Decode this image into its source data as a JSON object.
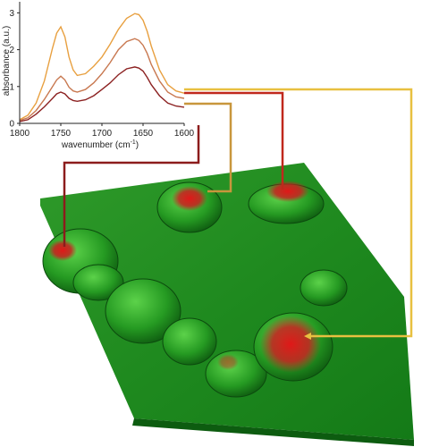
{
  "chart_data": {
    "type": "line",
    "title": "",
    "xlabel": "wavenumber (cm",
    "xlabel_sup": "-1",
    "xlabel_close": ")",
    "ylabel": "absorbance (a.u.)",
    "xlim": [
      1800,
      1600
    ],
    "ylim": [
      0,
      3.3
    ],
    "x_ticks": [
      "1800",
      "1750",
      "1700",
      "1650",
      "1600"
    ],
    "y_ticks": [
      "0",
      "1",
      "2",
      "3"
    ],
    "grid": false,
    "x": [
      1800,
      1790,
      1780,
      1770,
      1760,
      1755,
      1750,
      1745,
      1740,
      1735,
      1730,
      1720,
      1710,
      1700,
      1690,
      1680,
      1670,
      1660,
      1655,
      1650,
      1645,
      1640,
      1630,
      1620,
      1610,
      1600
    ],
    "series": [
      {
        "color": "#e8a040",
        "values": [
          0.1,
          0.22,
          0.55,
          1.15,
          2.05,
          2.45,
          2.62,
          2.35,
          1.8,
          1.45,
          1.3,
          1.35,
          1.55,
          1.8,
          2.15,
          2.55,
          2.85,
          2.98,
          2.95,
          2.8,
          2.5,
          2.1,
          1.45,
          1.05,
          0.88,
          0.82
        ]
      },
      {
        "color": "#c87850",
        "values": [
          0.08,
          0.15,
          0.35,
          0.65,
          1.0,
          1.18,
          1.28,
          1.18,
          0.98,
          0.88,
          0.85,
          0.92,
          1.1,
          1.35,
          1.65,
          2.0,
          2.22,
          2.3,
          2.25,
          2.12,
          1.9,
          1.6,
          1.15,
          0.85,
          0.72,
          0.68
        ]
      },
      {
        "color": "#8c2222",
        "values": [
          0.05,
          0.1,
          0.25,
          0.45,
          0.68,
          0.8,
          0.85,
          0.8,
          0.68,
          0.62,
          0.6,
          0.64,
          0.75,
          0.92,
          1.1,
          1.32,
          1.48,
          1.53,
          1.5,
          1.42,
          1.25,
          1.05,
          0.75,
          0.55,
          0.47,
          0.44
        ]
      }
    ]
  },
  "connector_colors": [
    "#e8c040",
    "#c8963c",
    "#c0281c",
    "#8c1c1c"
  ]
}
